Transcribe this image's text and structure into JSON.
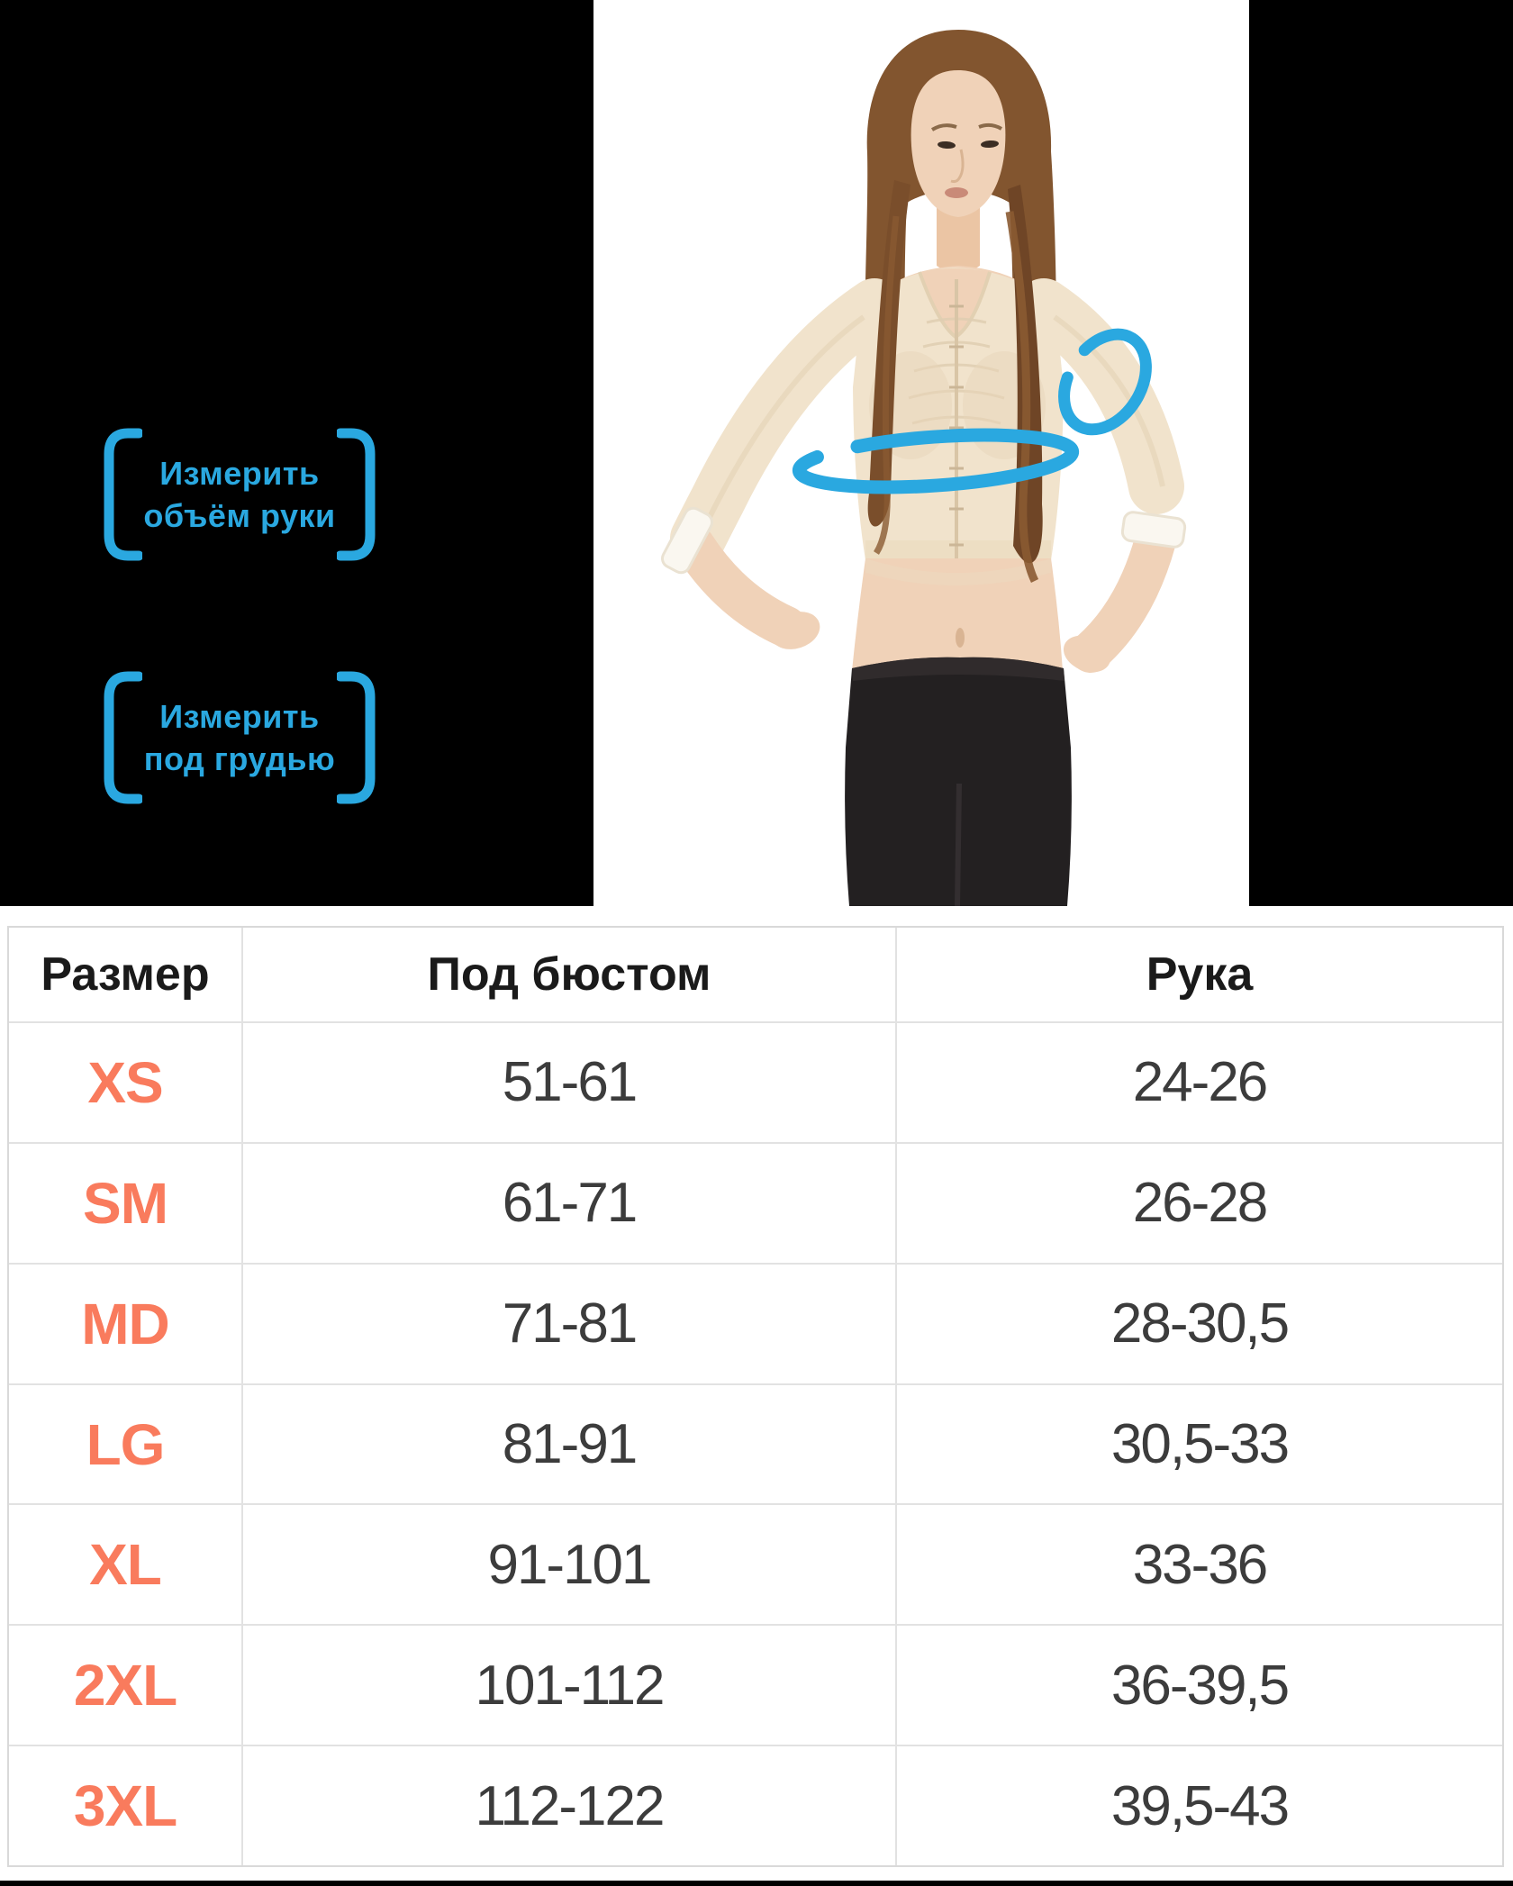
{
  "labels": {
    "arm": {
      "line1": "Измерить",
      "line2": "объём руки"
    },
    "underbust": {
      "line1": "Измерить",
      "line2": "под грудью"
    }
  },
  "table": {
    "headers": [
      "Размер",
      "Под бюстом",
      "Рука"
    ],
    "rows": [
      {
        "size": "XS",
        "underbust": "51-61",
        "arm": "24-26"
      },
      {
        "size": "SM",
        "underbust": "61-71",
        "arm": "26-28"
      },
      {
        "size": "MD",
        "underbust": "71-81",
        "arm": "28-30,5"
      },
      {
        "size": "LG",
        "underbust": "81-91",
        "arm": "30,5-33"
      },
      {
        "size": "XL",
        "underbust": "91-101",
        "arm": "33-36"
      },
      {
        "size": "2XL",
        "underbust": "101-112",
        "arm": "36-39,5"
      },
      {
        "size": "3XL",
        "underbust": "112-122",
        "arm": "39,5-43"
      }
    ]
  },
  "icons": {
    "left_bracket": "rounded-square-bracket-left",
    "right_bracket": "rounded-square-bracket-right",
    "arm_loop": "measuring-loop-around-arm",
    "underbust_loop": "measuring-loop-under-bust"
  },
  "colors": {
    "accent_blue": "#2AA8E0",
    "size_coral": "#F97B5D",
    "table_border": "#E2E2E2",
    "table_outer": "#D9D9D9",
    "header_text": "#1A1A1A",
    "cell_text": "#3C3C3C"
  }
}
